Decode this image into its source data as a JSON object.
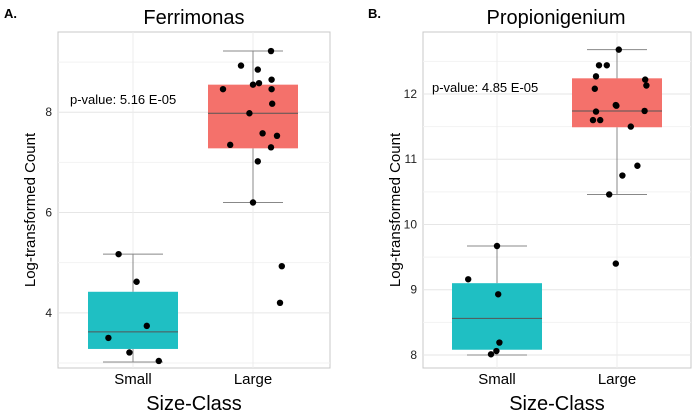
{
  "chart_data": [
    {
      "type": "box",
      "panel_label": "A.",
      "title": "Ferrimonas",
      "xlabel": "Size-Class",
      "ylabel": "Log-transformed Count",
      "categories": [
        "Small",
        "Large"
      ],
      "ylim": [
        2.9,
        9.6
      ],
      "yticks": [
        4,
        6,
        8
      ],
      "grid": true,
      "annotation": "p-value: 5.16 E-05",
      "colors": [
        "#1fbfc3",
        "#f4716b"
      ],
      "boxes": [
        {
          "category": "Small",
          "min": 3.02,
          "q1": 3.28,
          "median": 3.62,
          "q3": 4.42,
          "max": 5.17
        },
        {
          "category": "Large",
          "min": 6.2,
          "q1": 7.28,
          "median": 7.98,
          "q3": 8.55,
          "max": 9.22
        }
      ],
      "points": [
        {
          "category": "Small",
          "jitter": -0.24,
          "y": 5.17
        },
        {
          "category": "Small",
          "jitter": 0.06,
          "y": 4.62
        },
        {
          "category": "Small",
          "jitter": 0.23,
          "y": 3.74
        },
        {
          "category": "Small",
          "jitter": -0.41,
          "y": 3.5
        },
        {
          "category": "Small",
          "jitter": -0.06,
          "y": 3.21
        },
        {
          "category": "Small",
          "jitter": 0.43,
          "y": 3.04
        },
        {
          "category": "Large",
          "jitter": 0.3,
          "y": 9.22
        },
        {
          "category": "Large",
          "jitter": -0.2,
          "y": 8.93
        },
        {
          "category": "Large",
          "jitter": 0.08,
          "y": 8.85
        },
        {
          "category": "Large",
          "jitter": 0.31,
          "y": 8.65
        },
        {
          "category": "Large",
          "jitter": 0.1,
          "y": 8.58
        },
        {
          "category": "Large",
          "jitter": 0.0,
          "y": 8.55
        },
        {
          "category": "Large",
          "jitter": -0.5,
          "y": 8.46
        },
        {
          "category": "Large",
          "jitter": 0.31,
          "y": 8.46
        },
        {
          "category": "Large",
          "jitter": 0.32,
          "y": 8.17
        },
        {
          "category": "Large",
          "jitter": -0.06,
          "y": 7.98
        },
        {
          "category": "Large",
          "jitter": 0.16,
          "y": 7.58
        },
        {
          "category": "Large",
          "jitter": 0.4,
          "y": 7.53
        },
        {
          "category": "Large",
          "jitter": -0.38,
          "y": 7.35
        },
        {
          "category": "Large",
          "jitter": 0.3,
          "y": 7.3
        },
        {
          "category": "Large",
          "jitter": 0.08,
          "y": 7.02
        },
        {
          "category": "Large",
          "jitter": 0.0,
          "y": 6.2
        },
        {
          "category": "Large",
          "jitter": 0.48,
          "y": 4.93
        },
        {
          "category": "Large",
          "jitter": 0.45,
          "y": 4.2
        }
      ]
    },
    {
      "type": "box",
      "panel_label": "B.",
      "title": "Propionigenium",
      "xlabel": "Size-Class",
      "ylabel": "Log-transformed Count",
      "categories": [
        "Small",
        "Large"
      ],
      "ylim": [
        7.8,
        12.95
      ],
      "yticks": [
        8,
        9,
        10,
        11,
        12
      ],
      "grid": true,
      "annotation": "p-value: 4.85 E-05",
      "colors": [
        "#1fbfc3",
        "#f4716b"
      ],
      "boxes": [
        {
          "category": "Small",
          "min": 8.0,
          "q1": 8.08,
          "median": 8.56,
          "q3": 9.1,
          "max": 9.67
        },
        {
          "category": "Large",
          "min": 10.46,
          "q1": 11.49,
          "median": 11.74,
          "q3": 12.24,
          "max": 12.68
        }
      ],
      "points": [
        {
          "category": "Small",
          "jitter": 0.0,
          "y": 9.67
        },
        {
          "category": "Small",
          "jitter": -0.48,
          "y": 9.16
        },
        {
          "category": "Small",
          "jitter": 0.02,
          "y": 8.93
        },
        {
          "category": "Small",
          "jitter": 0.04,
          "y": 8.19
        },
        {
          "category": "Small",
          "jitter": -0.01,
          "y": 8.06
        },
        {
          "category": "Small",
          "jitter": -0.1,
          "y": 8.01
        },
        {
          "category": "Large",
          "jitter": 0.03,
          "y": 12.68
        },
        {
          "category": "Large",
          "jitter": -0.3,
          "y": 12.44
        },
        {
          "category": "Large",
          "jitter": -0.17,
          "y": 12.44
        },
        {
          "category": "Large",
          "jitter": -0.35,
          "y": 12.27
        },
        {
          "category": "Large",
          "jitter": 0.47,
          "y": 12.22
        },
        {
          "category": "Large",
          "jitter": 0.49,
          "y": 12.13
        },
        {
          "category": "Large",
          "jitter": -0.37,
          "y": 12.08
        },
        {
          "category": "Large",
          "jitter": -0.02,
          "y": 11.83
        },
        {
          "category": "Large",
          "jitter": -0.01,
          "y": 11.82
        },
        {
          "category": "Large",
          "jitter": -0.35,
          "y": 11.73
        },
        {
          "category": "Large",
          "jitter": 0.46,
          "y": 11.74
        },
        {
          "category": "Large",
          "jitter": -0.4,
          "y": 11.6
        },
        {
          "category": "Large",
          "jitter": -0.28,
          "y": 11.6
        },
        {
          "category": "Large",
          "jitter": 0.23,
          "y": 11.5
        },
        {
          "category": "Large",
          "jitter": 0.34,
          "y": 10.9
        },
        {
          "category": "Large",
          "jitter": 0.09,
          "y": 10.75
        },
        {
          "category": "Large",
          "jitter": -0.13,
          "y": 10.46
        },
        {
          "category": "Large",
          "jitter": -0.02,
          "y": 9.4
        }
      ]
    }
  ]
}
